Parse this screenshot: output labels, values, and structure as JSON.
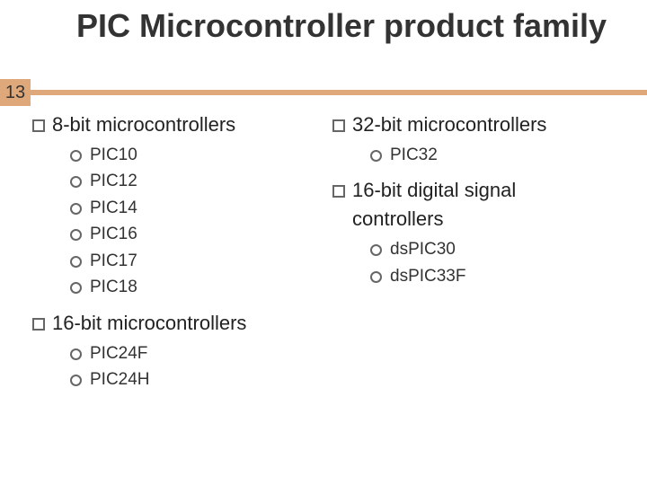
{
  "colors": {
    "accent": "#dfa87a",
    "text": "#333333",
    "background": "#ffffff"
  },
  "title": "PIC Microcontroller product family",
  "slide_number": "13",
  "left": {
    "sections": [
      {
        "heading": "8-bit microcontrollers",
        "items": [
          "PIC10",
          "PIC12",
          "PIC14",
          "PIC16",
          "PIC17",
          "PIC18"
        ]
      },
      {
        "heading": "16-bit microcontrollers",
        "items": [
          "PIC24F",
          "PIC24H"
        ]
      }
    ]
  },
  "right": {
    "sections": [
      {
        "heading": "32-bit microcontrollers",
        "items": [
          "PIC32"
        ]
      },
      {
        "heading": "16-bit digital signal",
        "heading_cont": "controllers",
        "items": [
          "dsPIC30",
          "dsPIC33F"
        ]
      }
    ]
  }
}
